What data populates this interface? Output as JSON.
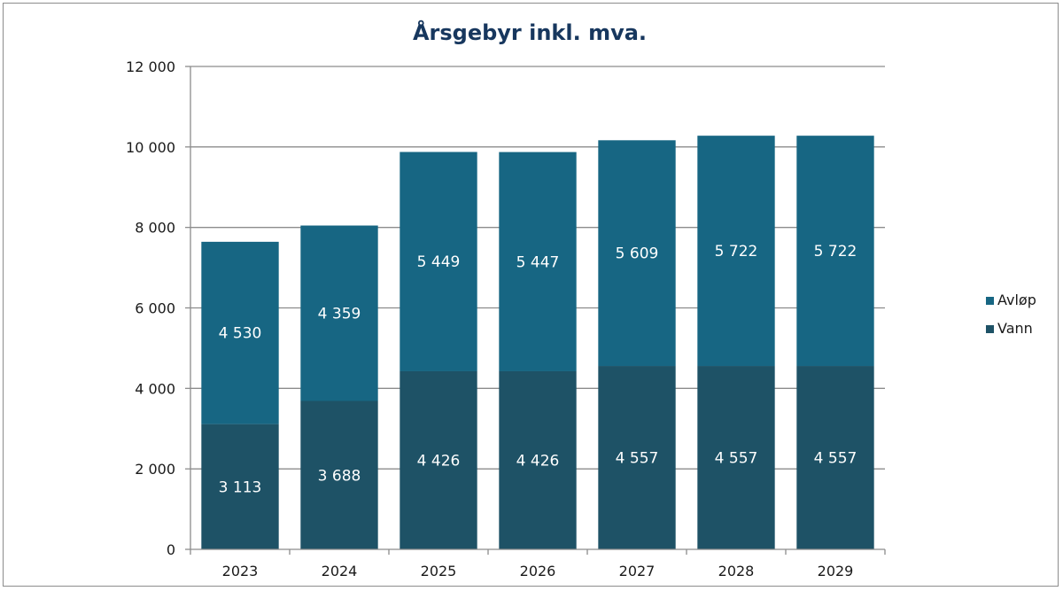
{
  "chart_data": {
    "type": "bar",
    "stacked": true,
    "title": "Årsgebyr inkl. mva.",
    "xlabel": "",
    "ylabel": "",
    "categories": [
      "2023",
      "2024",
      "2025",
      "2026",
      "2027",
      "2028",
      "2029"
    ],
    "series": [
      {
        "name": "Vann",
        "color": "#1e5266",
        "values": [
          3113,
          3688,
          4426,
          4426,
          4557,
          4557,
          4557
        ],
        "labels": [
          "3 113",
          "3 688",
          "4 426",
          "4 426",
          "4 557",
          "4 557",
          "4 557"
        ]
      },
      {
        "name": "Avløp",
        "color": "#176683",
        "values": [
          4530,
          4359,
          5449,
          5447,
          5609,
          5722,
          5722
        ],
        "labels": [
          "4 530",
          "4 359",
          "5 449",
          "5 447",
          "5 609",
          "5 722",
          "5 722"
        ]
      }
    ],
    "ylim": [
      0,
      12000
    ],
    "yticks": [
      0,
      2000,
      4000,
      6000,
      8000,
      10000,
      12000
    ],
    "ytick_labels": [
      "0",
      "2 000",
      "4 000",
      "6 000",
      "8 000",
      "10 000",
      "12 000"
    ],
    "grid": true,
    "legend": {
      "position": "right",
      "order": [
        "Avløp",
        "Vann"
      ]
    }
  }
}
